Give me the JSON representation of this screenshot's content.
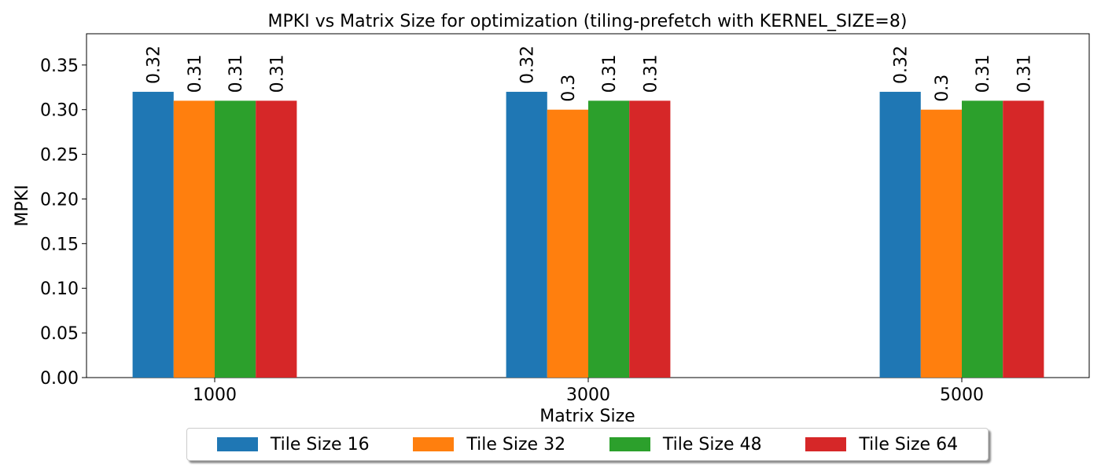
{
  "chart_data": {
    "type": "bar",
    "title": "MPKI vs Matrix Size for optimization (tiling-prefetch with KERNEL_SIZE=8)",
    "xlabel": "Matrix Size",
    "ylabel": "MPKI",
    "categories": [
      "1000",
      "3000",
      "5000"
    ],
    "ylim": [
      0,
      0.385
    ],
    "yticks": [
      "0.00",
      "0.05",
      "0.10",
      "0.15",
      "0.20",
      "0.25",
      "0.30",
      "0.35"
    ],
    "grid": false,
    "legend_position": "bottom-center",
    "series": [
      {
        "name": "Tile Size 16",
        "color": "#1f77b4",
        "values": [
          0.32,
          0.32,
          0.32
        ],
        "labels": [
          "0.32",
          "0.32",
          "0.32"
        ]
      },
      {
        "name": "Tile Size 32",
        "color": "#ff7f0e",
        "values": [
          0.31,
          0.3,
          0.3
        ],
        "labels": [
          "0.31",
          "0.3",
          "0.3"
        ]
      },
      {
        "name": "Tile Size 48",
        "color": "#2ca02c",
        "values": [
          0.31,
          0.31,
          0.31
        ],
        "labels": [
          "0.31",
          "0.31",
          "0.31"
        ]
      },
      {
        "name": "Tile Size 64",
        "color": "#d62728",
        "values": [
          0.31,
          0.31,
          0.31
        ],
        "labels": [
          "0.31",
          "0.31",
          "0.31"
        ]
      }
    ]
  }
}
